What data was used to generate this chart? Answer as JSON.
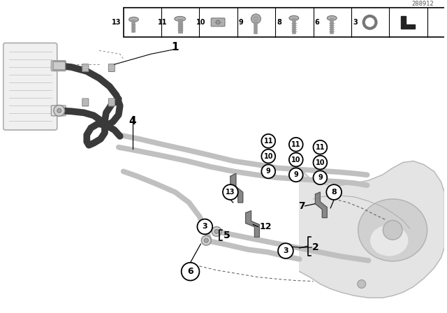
{
  "bg_color": "#ffffff",
  "diagram_id": "288912",
  "silver": "#c0c0c0",
  "dark_hose": "#3a3a3a",
  "trans_fill": "#d5d5d5",
  "trans_edge": "#b0b0b0",
  "label_color": "#111111"
}
